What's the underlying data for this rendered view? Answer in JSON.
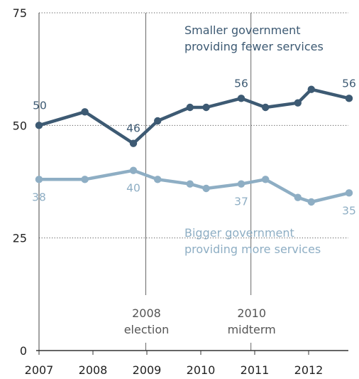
{
  "chart_data": {
    "type": "line",
    "ylim": [
      0,
      75
    ],
    "yticks": [
      0,
      25,
      50,
      75
    ],
    "xlim": [
      2007,
      2012.8
    ],
    "xticks": [
      2007,
      2008,
      2009,
      2010,
      2011,
      2012
    ],
    "grid": "dotted horizontal at 25, 50, 75",
    "series": [
      {
        "caption": [
          "Smaller government",
          "providing fewer services"
        ],
        "color": "#3d5a73",
        "x": [
          2007.0,
          2007.85,
          2008.75,
          2009.2,
          2009.8,
          2010.1,
          2010.75,
          2011.2,
          2011.8,
          2012.05,
          2012.75
        ],
        "y": [
          50,
          53,
          46,
          51,
          54,
          54,
          56,
          54,
          55,
          58,
          56
        ],
        "labels": [
          {
            "index": 0,
            "text": "50",
            "pos": "above-left"
          },
          {
            "index": 2,
            "text": "46",
            "pos": "above"
          },
          {
            "index": 6,
            "text": "56",
            "pos": "above"
          },
          {
            "index": 10,
            "text": "56",
            "pos": "above"
          }
        ]
      },
      {
        "caption": [
          "Bigger government",
          "providing more services"
        ],
        "color": "#8eaec4",
        "x": [
          2007.0,
          2007.85,
          2008.75,
          2009.2,
          2009.8,
          2010.1,
          2010.75,
          2011.2,
          2011.8,
          2012.05,
          2012.75
        ],
        "y": [
          38,
          38,
          40,
          38,
          37,
          36,
          37,
          38,
          34,
          33,
          35
        ],
        "labels": [
          {
            "index": 0,
            "text": "38",
            "pos": "below"
          },
          {
            "index": 2,
            "text": "40",
            "pos": "below"
          },
          {
            "index": 6,
            "text": "37",
            "pos": "below"
          },
          {
            "index": 10,
            "text": "35",
            "pos": "below"
          }
        ]
      }
    ],
    "events": [
      {
        "x": 2008.98,
        "lines": [
          "2008",
          "election"
        ]
      },
      {
        "x": 2010.93,
        "lines": [
          "2010",
          "midterm"
        ]
      }
    ]
  }
}
